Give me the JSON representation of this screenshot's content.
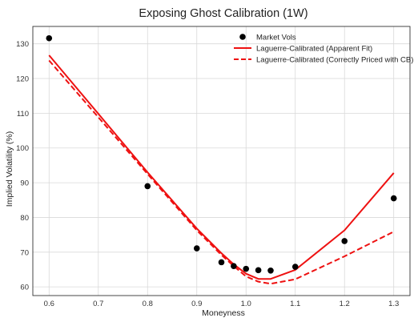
{
  "chart_data": {
    "type": "line",
    "title": "Exposing Ghost Calibration (1W)",
    "xlabel": "Moneyness",
    "ylabel": "Implied Volatility (%)",
    "xlim": [
      0.567,
      1.333
    ],
    "ylim": [
      57.5,
      135
    ],
    "xticks": [
      0.6,
      0.7,
      0.8,
      0.9,
      1.0,
      1.1,
      1.2,
      1.3
    ],
    "xtick_labels": [
      "0.6",
      "0.7",
      "0.8",
      "0.9",
      "1.0",
      "1.1",
      "1.2",
      "1.3"
    ],
    "yticks": [
      60,
      70,
      80,
      90,
      100,
      110,
      120,
      130
    ],
    "ytick_labels": [
      "60",
      "70",
      "80",
      "90",
      "100",
      "110",
      "120",
      "130"
    ],
    "grid": true,
    "legend_position": "top-right",
    "series": [
      {
        "name": "Market Vols",
        "kind": "scatter",
        "color": "#000000",
        "x": [
          0.6,
          0.8,
          0.9,
          0.95,
          0.975,
          1.0,
          1.025,
          1.05,
          1.1,
          1.2,
          1.3
        ],
        "y": [
          131.6,
          89.0,
          71.1,
          67.1,
          66.0,
          65.2,
          64.8,
          64.7,
          65.8,
          73.2,
          85.5
        ]
      },
      {
        "name": "Laguerre-Calibrated (Apparent Fit)",
        "kind": "line",
        "style": "solid",
        "color": "#ee1111",
        "x": [
          0.6,
          0.8,
          0.9,
          0.95,
          0.975,
          1.0,
          1.025,
          1.05,
          1.1,
          1.2,
          1.3
        ],
        "y": [
          126.7,
          93.0,
          76.8,
          69.7,
          66.5,
          63.8,
          62.3,
          62.3,
          64.9,
          76.3,
          92.8
        ]
      },
      {
        "name": "Laguerre-Calibrated (Correctly Priced with CB)",
        "kind": "line",
        "style": "dashed",
        "color": "#ee1111",
        "x": [
          0.6,
          0.8,
          0.9,
          0.95,
          0.975,
          1.0,
          1.025,
          1.05,
          1.1,
          1.2,
          1.3
        ],
        "y": [
          125.2,
          92.5,
          76.3,
          69.2,
          66.0,
          63.0,
          61.5,
          60.9,
          62.2,
          68.8,
          75.9
        ]
      }
    ]
  }
}
